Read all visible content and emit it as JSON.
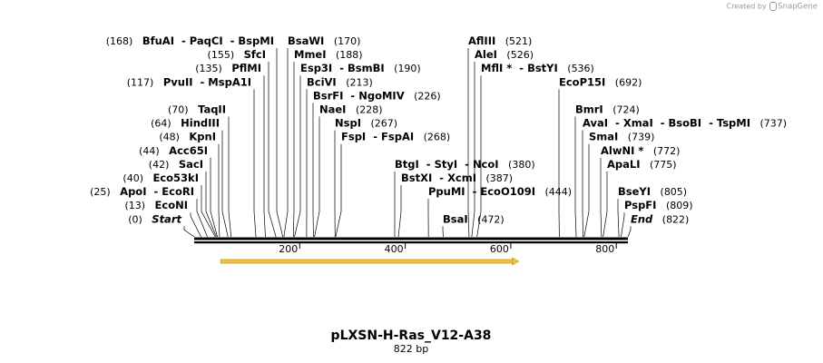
{
  "brand": {
    "created_by": "Created by",
    "name": "SnapGene"
  },
  "map": {
    "name": "pLXSN-H-Ras_V12-A38",
    "length_label": "822 bp",
    "length": 822,
    "ticks": [
      200,
      400,
      600,
      800
    ]
  },
  "sites": [
    {
      "id": "bfuai",
      "pos": 168,
      "pos_label": "(168)",
      "names": [
        "BfuAI",
        "PaqCI",
        "BspMI"
      ],
      "side": "left"
    },
    {
      "id": "sfci",
      "pos": 155,
      "pos_label": "(155)",
      "names": [
        "SfcI"
      ],
      "side": "left"
    },
    {
      "id": "pflmi",
      "pos": 135,
      "pos_label": "(135)",
      "names": [
        "PflMI"
      ],
      "side": "left"
    },
    {
      "id": "pvuii",
      "pos": 117,
      "pos_label": "(117)",
      "names": [
        "PvuII",
        "MspA1I"
      ],
      "side": "left"
    },
    {
      "id": "taqii",
      "pos": 70,
      "pos_label": "(70)",
      "names": [
        "TaqII"
      ],
      "side": "left"
    },
    {
      "id": "hindiii",
      "pos": 64,
      "pos_label": "(64)",
      "names": [
        "HindIII"
      ],
      "side": "left"
    },
    {
      "id": "kpni",
      "pos": 48,
      "pos_label": "(48)",
      "names": [
        "KpnI"
      ],
      "side": "left"
    },
    {
      "id": "acc65i",
      "pos": 44,
      "pos_label": "(44)",
      "names": [
        "Acc65I"
      ],
      "side": "left"
    },
    {
      "id": "saci",
      "pos": 42,
      "pos_label": "(42)",
      "names": [
        "SacI"
      ],
      "side": "left"
    },
    {
      "id": "eco53ki",
      "pos": 40,
      "pos_label": "(40)",
      "names": [
        "Eco53kI"
      ],
      "side": "left"
    },
    {
      "id": "apoi",
      "pos": 25,
      "pos_label": "(25)",
      "names": [
        "ApoI",
        "EcoRI"
      ],
      "side": "left"
    },
    {
      "id": "econi",
      "pos": 13,
      "pos_label": "(13)",
      "names": [
        "EcoNI"
      ],
      "side": "left"
    },
    {
      "id": "start",
      "pos": 0,
      "pos_label": "(0)",
      "names": [
        "Start"
      ],
      "side": "left",
      "italic": true
    },
    {
      "id": "bsawi",
      "pos": 170,
      "pos_label": "(170)",
      "names": [
        "BsaWI"
      ],
      "side": "right"
    },
    {
      "id": "mmei",
      "pos": 188,
      "pos_label": "(188)",
      "names": [
        "MmeI"
      ],
      "side": "right"
    },
    {
      "id": "esp3i",
      "pos": 190,
      "pos_label": "(190)",
      "names": [
        "Esp3I",
        "BsmBI"
      ],
      "side": "right"
    },
    {
      "id": "bcivi",
      "pos": 213,
      "pos_label": "(213)",
      "names": [
        "BciVI"
      ],
      "side": "right"
    },
    {
      "id": "bsrfi",
      "pos": 226,
      "pos_label": "(226)",
      "names": [
        "BsrFI",
        "NgoMIV"
      ],
      "side": "right"
    },
    {
      "id": "naei",
      "pos": 228,
      "pos_label": "(228)",
      "names": [
        "NaeI"
      ],
      "side": "right"
    },
    {
      "id": "nspi",
      "pos": 267,
      "pos_label": "(267)",
      "names": [
        "NspI"
      ],
      "side": "right"
    },
    {
      "id": "fspi",
      "pos": 268,
      "pos_label": "(268)",
      "names": [
        "FspI",
        "FspAI"
      ],
      "side": "right"
    },
    {
      "id": "btgi",
      "pos": 380,
      "pos_label": "(380)",
      "names": [
        "BtgI",
        "StyI",
        "NcoI"
      ],
      "side": "right"
    },
    {
      "id": "bstxi",
      "pos": 387,
      "pos_label": "(387)",
      "names": [
        "BstXI",
        "XcmI"
      ],
      "side": "right"
    },
    {
      "id": "ppumi",
      "pos": 444,
      "pos_label": "(444)",
      "names": [
        "PpuMI",
        "EcoO109I"
      ],
      "side": "right"
    },
    {
      "id": "bsai",
      "pos": 472,
      "pos_label": "(472)",
      "names": [
        "BsaI"
      ],
      "side": "right"
    },
    {
      "id": "afliii",
      "pos": 521,
      "pos_label": "(521)",
      "names": [
        "AflIII"
      ],
      "side": "right"
    },
    {
      "id": "alei",
      "pos": 526,
      "pos_label": "(526)",
      "names": [
        "AleI"
      ],
      "side": "right"
    },
    {
      "id": "mfli",
      "pos": 536,
      "pos_label": "(536)",
      "names": [
        "MflI *",
        "BstYI"
      ],
      "side": "right"
    },
    {
      "id": "ecop15i",
      "pos": 692,
      "pos_label": "(692)",
      "names": [
        "EcoP15I"
      ],
      "side": "right"
    },
    {
      "id": "bmri",
      "pos": 724,
      "pos_label": "(724)",
      "names": [
        "BmrI"
      ],
      "side": "right"
    },
    {
      "id": "avai",
      "pos": 737,
      "pos_label": "(737)",
      "names": [
        "AvaI",
        "XmaI",
        "BsoBI",
        "TspMI"
      ],
      "side": "right"
    },
    {
      "id": "smai",
      "pos": 739,
      "pos_label": "(739)",
      "names": [
        "SmaI"
      ],
      "side": "right"
    },
    {
      "id": "alwni",
      "pos": 772,
      "pos_label": "(772)",
      "names": [
        "AlwNI *"
      ],
      "side": "right"
    },
    {
      "id": "apali",
      "pos": 775,
      "pos_label": "(775)",
      "names": [
        "ApaLI"
      ],
      "side": "right"
    },
    {
      "id": "bseyi",
      "pos": 805,
      "pos_label": "(805)",
      "names": [
        "BseYI"
      ],
      "side": "right"
    },
    {
      "id": "pspfi",
      "pos": 809,
      "pos_label": "(809)",
      "names": [
        "PspFI"
      ],
      "side": "right"
    },
    {
      "id": "end",
      "pos": 822,
      "pos_label": "(822)",
      "names": [
        "End"
      ],
      "side": "right",
      "italic": true
    }
  ],
  "feature": {
    "start": 50,
    "end": 615,
    "direction": "forward",
    "color": "#f3c33f",
    "stroke": "#b8860b"
  },
  "colors": {
    "backbone": "#000000",
    "leader": "#000000"
  }
}
